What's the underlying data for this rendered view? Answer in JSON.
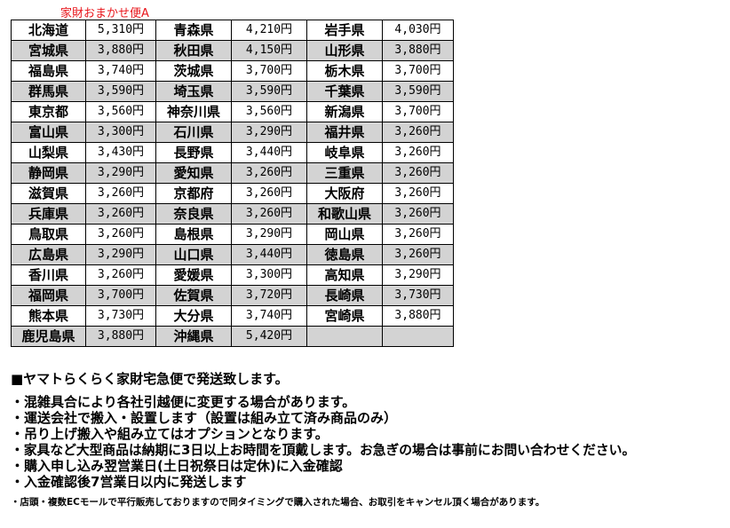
{
  "title": "家財おまかせ便A",
  "rows": [
    [
      [
        "北海道",
        "5,310円"
      ],
      [
        "青森県",
        "4,210円"
      ],
      [
        "岩手県",
        "4,030円"
      ]
    ],
    [
      [
        "宮城県",
        "3,880円"
      ],
      [
        "秋田県",
        "4,150円"
      ],
      [
        "山形県",
        "3,880円"
      ]
    ],
    [
      [
        "福島県",
        "3,740円"
      ],
      [
        "茨城県",
        "3,700円"
      ],
      [
        "栃木県",
        "3,700円"
      ]
    ],
    [
      [
        "群馬県",
        "3,590円"
      ],
      [
        "埼玉県",
        "3,590円"
      ],
      [
        "千葉県",
        "3,590円"
      ]
    ],
    [
      [
        "東京都",
        "3,560円"
      ],
      [
        "神奈川県",
        "3,560円"
      ],
      [
        "新潟県",
        "3,700円"
      ]
    ],
    [
      [
        "富山県",
        "3,300円"
      ],
      [
        "石川県",
        "3,290円"
      ],
      [
        "福井県",
        "3,260円"
      ]
    ],
    [
      [
        "山梨県",
        "3,430円"
      ],
      [
        "長野県",
        "3,440円"
      ],
      [
        "岐阜県",
        "3,260円"
      ]
    ],
    [
      [
        "静岡県",
        "3,290円"
      ],
      [
        "愛知県",
        "3,260円"
      ],
      [
        "三重県",
        "3,260円"
      ]
    ],
    [
      [
        "滋賀県",
        "3,260円"
      ],
      [
        "京都府",
        "3,260円"
      ],
      [
        "大阪府",
        "3,260円"
      ]
    ],
    [
      [
        "兵庫県",
        "3,260円"
      ],
      [
        "奈良県",
        "3,260円"
      ],
      [
        "和歌山県",
        "3,260円"
      ]
    ],
    [
      [
        "鳥取県",
        "3,260円"
      ],
      [
        "島根県",
        "3,290円"
      ],
      [
        "岡山県",
        "3,260円"
      ]
    ],
    [
      [
        "広島県",
        "3,290円"
      ],
      [
        "山口県",
        "3,440円"
      ],
      [
        "徳島県",
        "3,260円"
      ]
    ],
    [
      [
        "香川県",
        "3,260円"
      ],
      [
        "愛媛県",
        "3,300円"
      ],
      [
        "高知県",
        "3,290円"
      ]
    ],
    [
      [
        "福岡県",
        "3,700円"
      ],
      [
        "佐賀県",
        "3,720円"
      ],
      [
        "長崎県",
        "3,730円"
      ]
    ],
    [
      [
        "熊本県",
        "3,730円"
      ],
      [
        "大分県",
        "3,740円"
      ],
      [
        "宮崎県",
        "3,880円"
      ]
    ],
    [
      [
        "鹿児島県",
        "3,880円"
      ],
      [
        "沖縄県",
        "5,420円"
      ],
      [
        "",
        ""
      ]
    ]
  ],
  "notes": {
    "heading": "■ヤマトらくらく家財宅急便で発送致します。",
    "items": [
      "・混雑具合により各社引越便に変更する場合があります。",
      "・運送会社で搬入・設置します（設置は組み立て済み商品のみ）",
      "・吊り上げ搬入や組み立てはオプションとなります。",
      "・家具など大型商品は納期に3日以上お時間を頂戴します。お急ぎの場合は事前にお問い合わせください。",
      "・購入申し込み翌営業日(土日祝祭日は定休)に入金確認",
      "・入金確認後7営業日以内に発送します"
    ],
    "small": "・店頭・複数ECモールで平行販売しておりますので同タイミングで購入された場合、お取引をキャンセル頂く場合があります。"
  }
}
